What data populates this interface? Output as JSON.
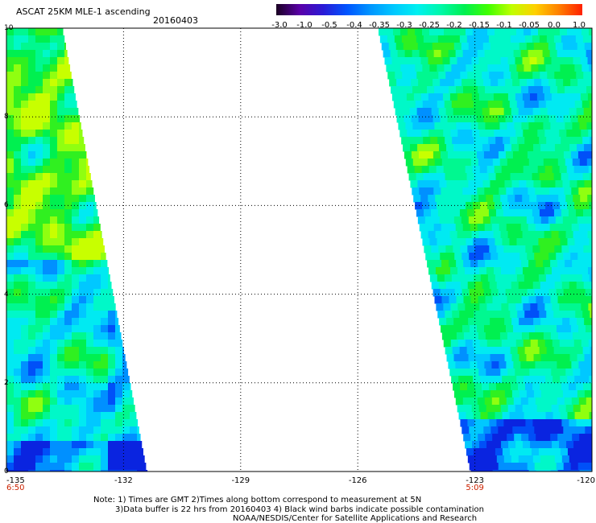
{
  "title": "ASCAT 25KM MLE-1 ascending",
  "date": "20160403",
  "colorbar": {
    "ticks": [
      "-3.0",
      "-1.0",
      "-0.5",
      "-0.4",
      "-0.35",
      "-0.3",
      "-0.25",
      "-0.2",
      "-0.15",
      "-0.1",
      "-0.05",
      "0.0",
      "1.0"
    ],
    "colors": [
      "#1a0022",
      "#5a00a8",
      "#2a1bd6",
      "#0054ff",
      "#0096ff",
      "#00c8ff",
      "#00f0f0",
      "#00f8a8",
      "#00f050",
      "#40ff00",
      "#c0ff00",
      "#ffd000",
      "#ff8000",
      "#ff2000"
    ]
  },
  "map": {
    "lat_ticks": [
      "0",
      "2",
      "4",
      "6",
      "8",
      "10"
    ],
    "lon_ticks": [
      "-135",
      "-132",
      "-129",
      "-126",
      "-123",
      "-120"
    ],
    "time_labels": [
      {
        "lon": "-135",
        "text": "6:50"
      },
      {
        "lon": "-123",
        "text": "5:09"
      }
    ],
    "lat_range": [
      0,
      10
    ],
    "lon_range": [
      -135,
      -120
    ],
    "grid": "dotted"
  },
  "notes": {
    "line1": "Note: 1) Times are GMT 2)Times along bottom correspond to measurement at 5N",
    "line2": "3)Data buffer is 22 hrs from 20160403 4) Black wind barbs indicate possible contamination",
    "line3": "NOAA/NESDIS/Center for Satellite Applications and Research"
  }
}
